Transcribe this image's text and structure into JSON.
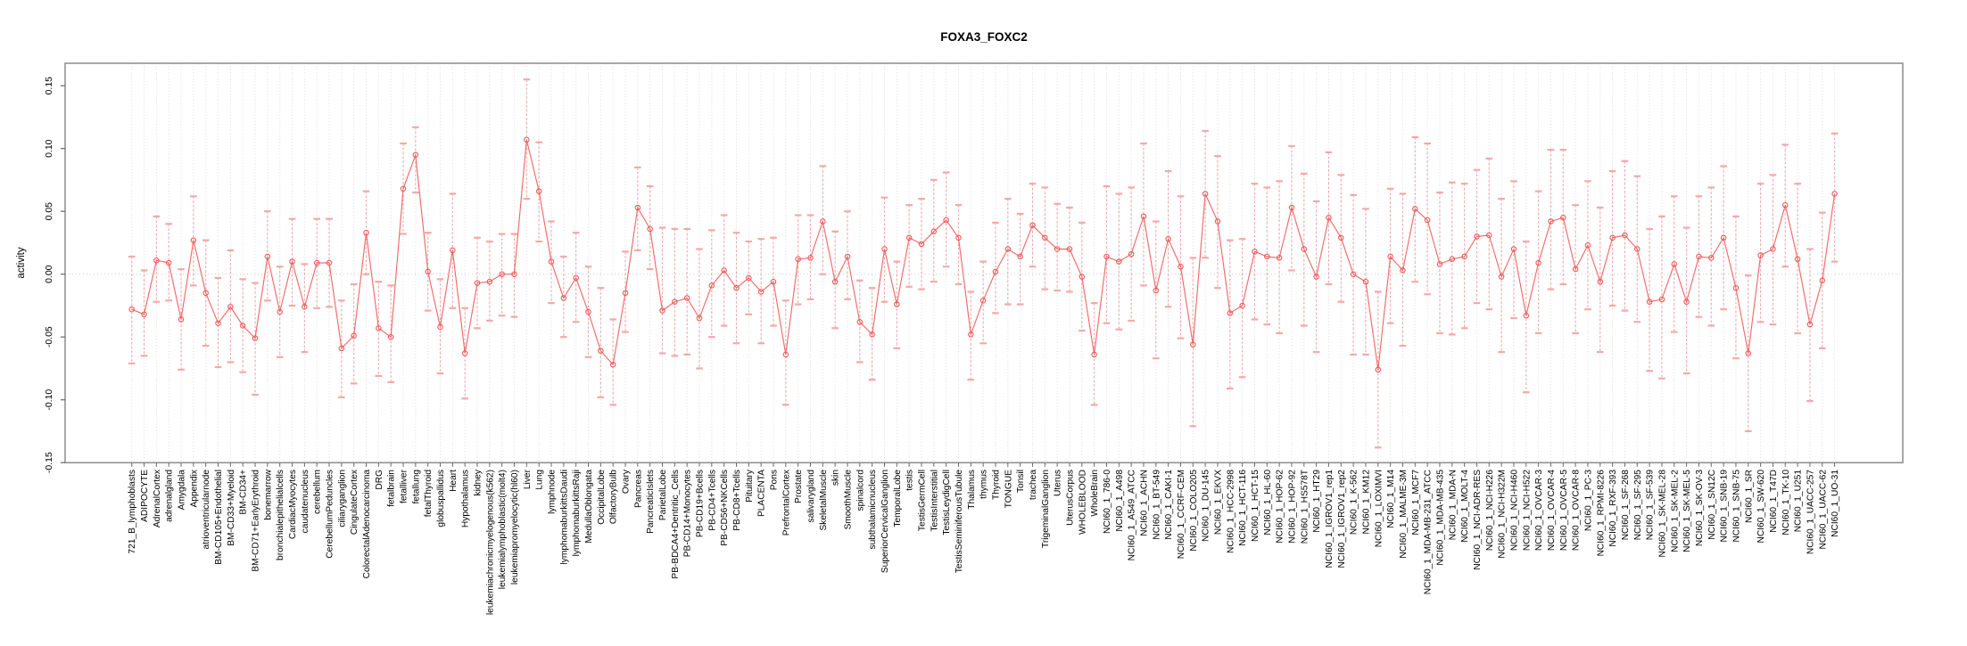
{
  "chart_data": {
    "type": "line",
    "title": "FOXA3_FOXC2",
    "ylabel": "activity",
    "xlabel": "",
    "legend": "none",
    "grid": {
      "vertical_per_category": true,
      "horizontal_zero_line": true
    },
    "ylim": [
      -0.15,
      0.168
    ],
    "yticks": [
      -0.15,
      -0.1,
      -0.05,
      0.0,
      0.05,
      0.1,
      0.15
    ],
    "ytick_labels": [
      "-0.15",
      "-0.10",
      "-0.05",
      "0.00",
      "0.05",
      "0.10",
      "0.15"
    ],
    "series": [
      {
        "name": "activity",
        "marker": "open-circle",
        "error_bars": true
      }
    ],
    "colors": {
      "line": "#ef5a5a",
      "marker": "#ef5a5a",
      "error_stem": "#ef5a5a",
      "error_cap": "#f5a0a0",
      "grid": "#dcdcdc",
      "zero_line": "#c9c9c9",
      "box": "#8c8c8c",
      "text": "#000000"
    },
    "categories": [
      "721_B_lymphoblasts",
      "ADIPOCYTE",
      "AdrenalCortex",
      "adrenalgland",
      "Amygdala",
      "Appendix",
      "atrioventricularnode",
      "BM-CD105+Endothelial",
      "BM-CD33+Myeloid",
      "BM-CD34+",
      "BM-CD71+EarlyErythroid",
      "bonemarrow",
      "bronchialepithelialcells",
      "CardiacMyocytes",
      "caudatenucleus",
      "cerebellum",
      "CerebellumPeduncles",
      "ciliaryganglion",
      "CingulateCortex",
      "ColorectalAdenocarcinoma",
      "DRG",
      "fetalbrain",
      "fetalliver",
      "fetallung",
      "fetalThyroid",
      "globuspallidus",
      "Heart",
      "Hypothalamus",
      "kidney",
      "leukemiachronicmyelogenous(k562)",
      "leukemialymphoblastic(molt4)",
      "leukemiapromyelocytic(hl60)",
      "Liver",
      "Lung",
      "lymphnode",
      "lymphomaburkittsDaudi",
      "lymphomaburkittsRaji",
      "MedullaOblongata",
      "OccipitalLobe",
      "OlfactoryBulb",
      "Ovary",
      "Pancreas",
      "PancreaticIslets",
      "ParietalLobe",
      "PB-BDCA4+Dentritic_Cells",
      "PB-CD14+Monocytes",
      "PB-CD19+Bcells",
      "PB-CD4+Tcells",
      "PB-CD56+NKCells",
      "PB-CD8+Tcells",
      "Pituitary",
      "PLACENTA",
      "Pons",
      "PrefrontalCortex",
      "Prostate",
      "salivarygland",
      "SkeletalMuscle",
      "skin",
      "SmoothMuscle",
      "spinalcord",
      "subthalamicnucleus",
      "SuperiorCervicalGanglion",
      "TemporalLobe",
      "testis",
      "TestisGermCell",
      "TestisInterstitial",
      "TestisLeydigCell",
      "TestisSeminiferousTubule",
      "Thalamus",
      "thymus",
      "Thyroid",
      "TONGUE",
      "Tonsil",
      "trachea",
      "TrigeminalGanglion",
      "Uterus",
      "UterusCorpus",
      "WHOLEBLOOD",
      "WholeBrain",
      "NCI60_1_786-0",
      "NCI60_1_A498",
      "NCI60_1_A549_ATCC",
      "NCI60_1_ACHN",
      "NCI60_1_BT-549",
      "NCI60_1_CAKI-1",
      "NCI60_1_CCRF-CEM",
      "NCI60_1_COLO205",
      "NCI60_1_DU-145",
      "NCI60_1_EKVX",
      "NCI60_1_HCC-2998",
      "NCI60_1_HCT-116",
      "NCI60_1_HCT-15",
      "NCI60_1_HL-60",
      "NCI60_1_HOP-62",
      "NCI60_1_HOP-92",
      "NCI60_1_HS578T",
      "NCI60_1_HT29",
      "NCI60_1_IGROV1_rep1",
      "NCI60_1_IGROV1_rep2",
      "NCI60_1_K-562",
      "NCI60_1_KM12",
      "NCI60_1_LOXIMVI",
      "NCI60_1_M14",
      "NCI60_1_MALME-3M",
      "NCI60_1_MCF7",
      "NCI60_1_MDA-MB-231_ATCC",
      "NCI60_1_MDA-MB-435",
      "NCI60_1_MDA-N",
      "NCI60_1_MOLT-4",
      "NCI60_1_NCI-ADR-RES",
      "NCI60_1_NCI-H226",
      "NCI60_1_NCI-H322M",
      "NCI60_1_NCI-H460",
      "NCI60_1_NCI-H522",
      "NCI60_1_OVCAR-3",
      "NCI60_1_OVCAR-4",
      "NCI60_1_OVCAR-5",
      "NCI60_1_OVCAR-8",
      "NCI60_1_PC-3",
      "NCI60_1_RPMI-8226",
      "NCI60_1_RXF-393",
      "NCI60_1_SF-268",
      "NCI60_1_SF-295",
      "NCI60_1_SF-539",
      "NCI60_1_SK-MEL-28",
      "NCI60_1_SK-MEL-2",
      "NCI60_1_SK-MEL-5",
      "NCI60_1_SK-OV-3",
      "NCI60_1_SN12C",
      "NCI60_1_SNB-19",
      "NCI60_1_SNB-75",
      "NCI60_1_SR",
      "NCI60_1_SW-620",
      "NCI60_1_T47D",
      "NCI60_1_TK-10",
      "NCI60_1_U251",
      "NCI60_1_UACC-257",
      "NCI60_1_UACC-62",
      "NCI60_1_UO-31"
    ],
    "values": [
      -0.028,
      -0.032,
      0.011,
      0.009,
      -0.036,
      0.027,
      -0.015,
      -0.039,
      -0.026,
      -0.041,
      -0.051,
      0.014,
      -0.03,
      0.01,
      -0.026,
      0.009,
      0.009,
      -0.059,
      -0.049,
      0.033,
      -0.043,
      -0.05,
      0.068,
      0.095,
      0.002,
      -0.042,
      0.019,
      -0.063,
      -0.007,
      -0.006,
      0.0,
      0.0,
      0.107,
      0.066,
      0.01,
      -0.019,
      -0.003,
      -0.03,
      -0.061,
      -0.072,
      -0.015,
      0.053,
      0.036,
      -0.029,
      -0.022,
      -0.019,
      -0.035,
      -0.009,
      0.003,
      -0.011,
      -0.003,
      -0.014,
      -0.006,
      -0.064,
      0.012,
      0.013,
      0.042,
      -0.006,
      0.014,
      -0.038,
      -0.048,
      0.02,
      -0.024,
      0.029,
      0.024,
      0.034,
      0.043,
      0.029,
      -0.048,
      -0.021,
      0.002,
      0.02,
      0.014,
      0.039,
      0.029,
      0.02,
      0.02,
      -0.002,
      -0.064,
      0.014,
      0.01,
      0.016,
      0.046,
      -0.013,
      0.028,
      0.006,
      -0.056,
      0.064,
      0.042,
      -0.031,
      -0.025,
      0.018,
      0.014,
      0.013,
      0.053,
      0.02,
      -0.002,
      0.045,
      0.029,
      0.0,
      -0.006,
      -0.076,
      0.014,
      0.003,
      0.052,
      0.043,
      0.008,
      0.012,
      0.014,
      0.03,
      0.031,
      -0.002,
      0.02,
      -0.033,
      0.009,
      0.042,
      0.045,
      0.004,
      0.023,
      -0.006,
      0.029,
      0.031,
      0.02,
      -0.022,
      -0.02,
      0.008,
      -0.022,
      0.014,
      0.013,
      0.029,
      -0.011,
      -0.063,
      0.015,
      0.02,
      0.055,
      0.012,
      -0.04,
      -0.005,
      0.064
    ],
    "err_lo": [
      -0.071,
      -0.065,
      -0.022,
      -0.021,
      -0.076,
      -0.009,
      -0.057,
      -0.074,
      -0.07,
      -0.078,
      -0.096,
      -0.021,
      -0.066,
      -0.025,
      -0.062,
      -0.027,
      -0.026,
      -0.098,
      -0.087,
      0.0,
      -0.081,
      -0.086,
      0.032,
      0.065,
      -0.029,
      -0.079,
      -0.027,
      -0.099,
      -0.043,
      -0.037,
      -0.033,
      -0.034,
      0.06,
      0.026,
      -0.023,
      -0.05,
      -0.038,
      -0.066,
      -0.098,
      -0.104,
      -0.046,
      0.019,
      0.004,
      -0.063,
      -0.065,
      -0.064,
      -0.075,
      -0.05,
      -0.041,
      -0.055,
      -0.032,
      -0.055,
      -0.041,
      -0.104,
      -0.024,
      -0.02,
      0.0,
      -0.043,
      -0.02,
      -0.07,
      -0.084,
      -0.022,
      -0.059,
      -0.01,
      -0.012,
      -0.006,
      0.006,
      -0.008,
      -0.084,
      -0.055,
      -0.031,
      -0.024,
      -0.024,
      0.006,
      -0.012,
      -0.013,
      -0.014,
      -0.045,
      -0.104,
      -0.039,
      -0.044,
      -0.037,
      -0.009,
      -0.067,
      -0.026,
      -0.051,
      -0.121,
      0.013,
      -0.011,
      -0.091,
      -0.082,
      -0.036,
      -0.04,
      -0.047,
      0.003,
      -0.041,
      -0.062,
      -0.008,
      -0.022,
      -0.064,
      -0.064,
      -0.138,
      -0.039,
      -0.057,
      -0.006,
      -0.016,
      -0.047,
      -0.048,
      -0.043,
      -0.023,
      -0.028,
      -0.062,
      -0.035,
      -0.094,
      -0.047,
      -0.012,
      -0.008,
      -0.047,
      -0.028,
      -0.062,
      -0.025,
      -0.029,
      -0.038,
      -0.077,
      -0.083,
      -0.046,
      -0.079,
      -0.034,
      -0.041,
      -0.028,
      -0.067,
      -0.125,
      -0.038,
      -0.04,
      0.006,
      -0.047,
      -0.101,
      -0.059,
      0.01
    ],
    "err_hi": [
      0.014,
      0.003,
      0.046,
      0.04,
      0.004,
      0.062,
      0.027,
      -0.003,
      0.019,
      -0.004,
      -0.007,
      0.05,
      0.006,
      0.044,
      0.008,
      0.044,
      0.044,
      -0.021,
      -0.008,
      0.066,
      -0.006,
      -0.009,
      0.104,
      0.117,
      0.033,
      -0.004,
      0.064,
      -0.027,
      0.029,
      0.026,
      0.032,
      0.032,
      0.155,
      0.105,
      0.042,
      0.014,
      0.033,
      0.006,
      -0.011,
      -0.036,
      0.018,
      0.085,
      0.07,
      0.037,
      0.036,
      0.036,
      0.02,
      0.035,
      0.047,
      0.033,
      0.026,
      0.028,
      0.029,
      -0.021,
      0.047,
      0.047,
      0.086,
      0.034,
      0.05,
      -0.005,
      -0.011,
      0.061,
      0.01,
      0.055,
      0.06,
      0.075,
      0.081,
      0.055,
      -0.014,
      0.01,
      0.041,
      0.06,
      0.048,
      0.072,
      0.069,
      0.056,
      0.053,
      0.041,
      -0.023,
      0.07,
      0.064,
      0.069,
      0.104,
      0.042,
      0.082,
      0.062,
      0.013,
      0.114,
      0.094,
      0.027,
      0.028,
      0.072,
      0.069,
      0.074,
      0.102,
      0.08,
      0.058,
      0.097,
      0.079,
      0.063,
      0.052,
      -0.014,
      0.068,
      0.064,
      0.109,
      0.104,
      0.065,
      0.073,
      0.072,
      0.083,
      0.092,
      0.06,
      0.074,
      0.026,
      0.066,
      0.099,
      0.099,
      0.055,
      0.074,
      0.053,
      0.082,
      0.09,
      0.078,
      0.036,
      0.046,
      0.062,
      0.037,
      0.062,
      0.069,
      0.086,
      0.046,
      -0.001,
      0.072,
      0.079,
      0.103,
      0.072,
      0.02,
      0.049,
      0.112
    ]
  }
}
